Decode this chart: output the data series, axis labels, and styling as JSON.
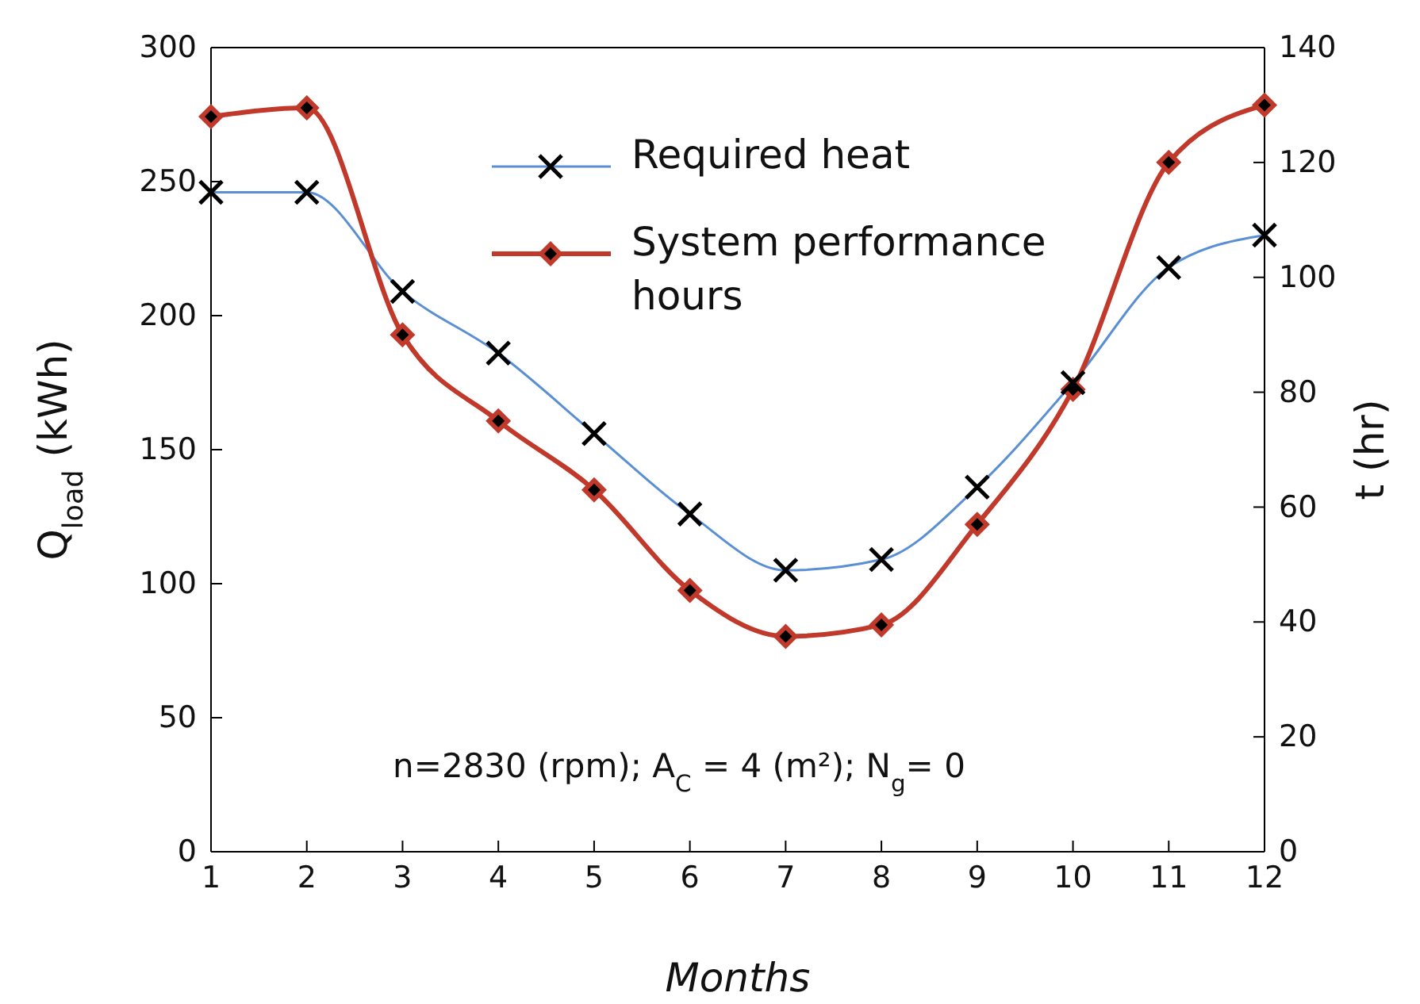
{
  "chart_data": {
    "type": "line",
    "xlabel": "Months",
    "ylabel": "Q$_{load}$ (kWh)",
    "y2label": "t (hr)",
    "x": [
      1,
      2,
      3,
      4,
      5,
      6,
      7,
      8,
      9,
      10,
      11,
      12
    ],
    "xlim": [
      1,
      12
    ],
    "xticks": [
      1,
      2,
      3,
      4,
      5,
      6,
      7,
      8,
      9,
      10,
      11,
      12
    ],
    "ylim": [
      0,
      300
    ],
    "yticks": [
      0,
      50,
      100,
      150,
      200,
      250,
      300
    ],
    "y2lim": [
      0,
      140
    ],
    "y2ticks": [
      0,
      20,
      40,
      60,
      80,
      100,
      120,
      140
    ],
    "series": [
      {
        "name": "Required heat",
        "color": "#5b8fd4",
        "marker": "cross",
        "values": [
          246,
          246,
          209,
          186,
          156,
          126,
          105,
          109,
          136,
          175,
          218,
          230
        ]
      },
      {
        "name": "System performance hours",
        "color": "#c0392b",
        "marker": "diamond",
        "axis": "y2",
        "values": [
          128,
          129.5,
          90,
          75,
          63,
          45.5,
          37.5,
          39.5,
          57,
          80.5,
          120,
          130
        ]
      }
    ],
    "annotations": [
      "n=2830 (rpm); A$_{C}$ = 4 (m²); N$_{g}$= 0"
    ],
    "legend": "top",
    "grid": false
  }
}
